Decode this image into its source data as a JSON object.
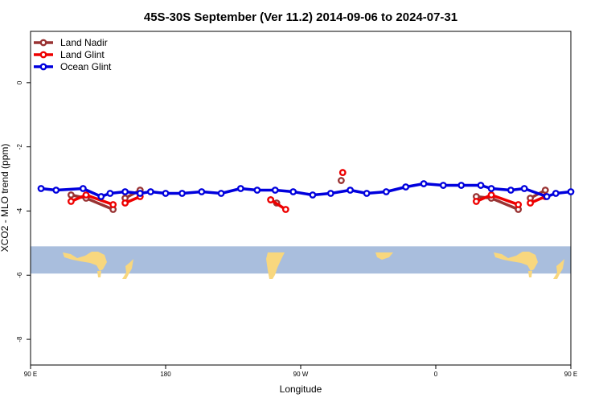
{
  "chart_data": {
    "type": "line",
    "title": "45S-30S September (Ver 11.2)   2014-09-06 to 2024-07-31",
    "xlabel": "Longitude",
    "ylabel": "XCO2 - MLO trend (ppm)",
    "xlim": [
      90,
      450
    ],
    "ylim": [
      -8.8,
      1.6
    ],
    "x_ticks": [
      {
        "value": 90,
        "label": "90 E"
      },
      {
        "value": 180,
        "label": "180"
      },
      {
        "value": 270,
        "label": "90 W"
      },
      {
        "value": 360,
        "label": "0"
      },
      {
        "value": 450,
        "label": "90 E"
      },
      {
        "value": 540,
        "label": "180"
      }
    ],
    "y_ticks": [
      {
        "value": 0,
        "label": "0"
      },
      {
        "value": -2,
        "label": "-2"
      },
      {
        "value": -4,
        "label": "-4"
      },
      {
        "value": -6,
        "label": "-6"
      },
      {
        "value": -8,
        "label": "-8"
      }
    ],
    "legend_position": "top-left",
    "map_band": {
      "y_top": -5.1,
      "y_bottom": -5.95,
      "ocean_color": "#a9bedd",
      "land_color": "#f8d77e"
    },
    "series": [
      {
        "name": "Land Nadir",
        "color": "#993333",
        "segments": [
          [
            [
              117,
              -3.5
            ],
            [
              127,
              -3.6
            ],
            [
              145,
              -3.95
            ]
          ],
          [
            [
              153,
              -3.6
            ],
            [
              163,
              -3.35
            ]
          ],
          [
            [
              250,
              -3.65
            ],
            [
              254,
              -3.75
            ]
          ],
          [
            [
              297,
              -3.05
            ]
          ],
          [
            [
              387,
              -3.55
            ],
            [
              397,
              -3.6
            ],
            [
              415,
              -3.95
            ]
          ],
          [
            [
              423,
              -3.6
            ],
            [
              433,
              -3.35
            ]
          ]
        ]
      },
      {
        "name": "Land Glint",
        "color": "#ee0000",
        "segments": [
          [
            [
              117,
              -3.7
            ],
            [
              127,
              -3.5
            ],
            [
              145,
              -3.8
            ]
          ],
          [
            [
              153,
              -3.75
            ],
            [
              163,
              -3.55
            ]
          ],
          [
            [
              250,
              -3.65
            ],
            [
              260,
              -3.95
            ]
          ],
          [
            [
              298,
              -2.8
            ]
          ],
          [
            [
              387,
              -3.7
            ],
            [
              397,
              -3.5
            ],
            [
              415,
              -3.8
            ]
          ],
          [
            [
              423,
              -3.75
            ],
            [
              433,
              -3.55
            ]
          ]
        ]
      },
      {
        "name": "Ocean Glint",
        "color": "#0000dd",
        "segments": [
          [
            [
              97,
              -3.3
            ],
            [
              107,
              -3.35
            ],
            [
              125,
              -3.3
            ],
            [
              137,
              -3.55
            ],
            [
              143,
              -3.45
            ],
            [
              153,
              -3.4
            ],
            [
              163,
              -3.45
            ],
            [
              170,
              -3.4
            ],
            [
              180,
              -3.45
            ],
            [
              191,
              -3.45
            ],
            [
              204,
              -3.4
            ],
            [
              217,
              -3.45
            ],
            [
              230,
              -3.3
            ],
            [
              241,
              -3.35
            ],
            [
              253,
              -3.35
            ],
            [
              265,
              -3.4
            ],
            [
              278,
              -3.5
            ],
            [
              290,
              -3.45
            ],
            [
              303,
              -3.35
            ],
            [
              314,
              -3.45
            ],
            [
              327,
              -3.4
            ],
            [
              340,
              -3.25
            ],
            [
              352,
              -3.15
            ],
            [
              365,
              -3.2
            ],
            [
              377,
              -3.2
            ],
            [
              390,
              -3.2
            ],
            [
              397,
              -3.3
            ],
            [
              410,
              -3.35
            ],
            [
              419,
              -3.3
            ],
            [
              434,
              -3.55
            ],
            [
              440,
              -3.45
            ],
            [
              450,
              -3.4
            ]
          ]
        ]
      }
    ]
  }
}
